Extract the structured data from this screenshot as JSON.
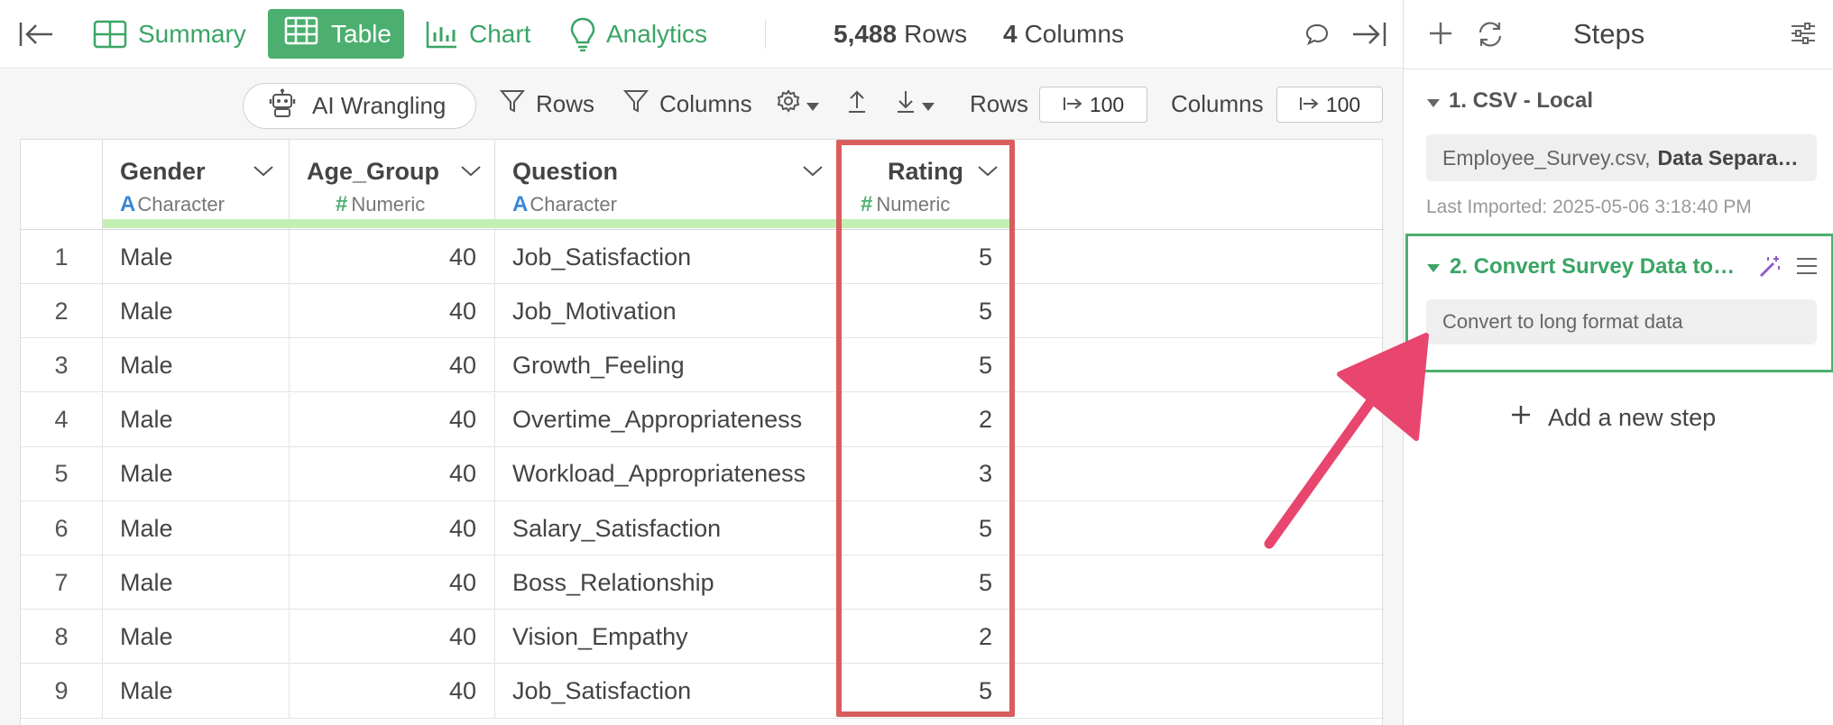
{
  "toolbar": {
    "tabs": [
      {
        "label": "Summary"
      },
      {
        "label": "Table"
      },
      {
        "label": "Chart"
      },
      {
        "label": "Analytics"
      }
    ],
    "rows_count": "5,488",
    "rows_word": "Rows",
    "cols_count": "4",
    "cols_word": "Columns"
  },
  "actions": {
    "ai_wrangling": "AI Wrangling",
    "rows_filter": "Rows",
    "columns_filter": "Columns",
    "rows_limit_label": "Rows",
    "rows_limit_value": "100",
    "cols_limit_label": "Columns",
    "cols_limit_value": "100"
  },
  "table": {
    "columns": [
      {
        "name": "Gender",
        "type": "Character",
        "type_icon": "A"
      },
      {
        "name": "Age_Group",
        "type": "Numeric",
        "type_icon": "#"
      },
      {
        "name": "Question",
        "type": "Character",
        "type_icon": "A"
      },
      {
        "name": "Rating",
        "type": "Numeric",
        "type_icon": "#"
      }
    ],
    "rows": [
      {
        "idx": "1",
        "gender": "Male",
        "age": "40",
        "question": "Job_Satisfaction",
        "rating": "5"
      },
      {
        "idx": "2",
        "gender": "Male",
        "age": "40",
        "question": "Job_Motivation",
        "rating": "5"
      },
      {
        "idx": "3",
        "gender": "Male",
        "age": "40",
        "question": "Growth_Feeling",
        "rating": "5"
      },
      {
        "idx": "4",
        "gender": "Male",
        "age": "40",
        "question": "Overtime_Appropriateness",
        "rating": "2"
      },
      {
        "idx": "5",
        "gender": "Male",
        "age": "40",
        "question": "Workload_Appropriateness",
        "rating": "3"
      },
      {
        "idx": "6",
        "gender": "Male",
        "age": "40",
        "question": "Salary_Satisfaction",
        "rating": "5"
      },
      {
        "idx": "7",
        "gender": "Male",
        "age": "40",
        "question": "Boss_Relationship",
        "rating": "5"
      },
      {
        "idx": "8",
        "gender": "Male",
        "age": "40",
        "question": "Vision_Empathy",
        "rating": "2"
      },
      {
        "idx": "9",
        "gender": "Male",
        "age": "40",
        "question": "Job_Satisfaction",
        "rating": "5"
      }
    ]
  },
  "steps": {
    "title": "Steps",
    "step1": {
      "title": "1. CSV - Local",
      "file": "Employee_Survey.csv,",
      "detail": "Data Separa…",
      "meta": "Last Imported: 2025-05-06 3:18:40 PM"
    },
    "step2": {
      "title": "2. Convert Survey Data to…",
      "description": "Convert to long format data"
    },
    "add_step": "Add a new step"
  },
  "colors": {
    "accent_green": "#4caf6f",
    "highlight_red": "#d95d5d",
    "arrow_pink": "#e8456f",
    "wand_purple": "#8e5cc8"
  }
}
